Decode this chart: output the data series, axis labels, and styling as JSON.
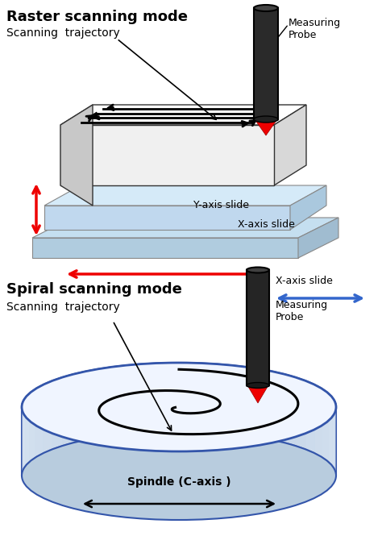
{
  "title_top": "Raster scanning mode",
  "subtitle_top": "Scanning  trajectory",
  "title_bottom": "Spiral scanning mode",
  "subtitle_bottom": "Scanning  trajectory",
  "label_measuring_probe_top": "Measuring\nProbe",
  "label_y_axis_slide": "Y-axis slide",
  "label_x_axis_slide_top": "X-axis slide",
  "label_x_axis_slide_bottom": "X-axis slide",
  "label_measuring_probe_bottom": "Measuring\nProbe",
  "label_spindle": "Spindle (C-axis )",
  "bg_color": "#ffffff",
  "blue_light": "#cce0f5",
  "blue_mid": "#a8c8e8",
  "blue_dark_edge": "#2255aa",
  "white_sample": "#ffffff",
  "gray_probe": "#333333",
  "gray_probe_cap": "#555555",
  "red_color": "#ee0000",
  "blue_arrow": "#3366cc"
}
